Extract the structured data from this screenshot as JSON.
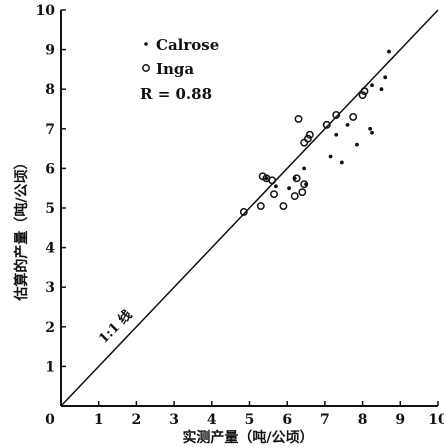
{
  "chart_data": {
    "type": "scatter",
    "title": "",
    "xlabel": "实测产量（吨/公顷）",
    "ylabel": "估算的产量（吨/公顷）",
    "xlim": [
      0,
      10
    ],
    "ylim": [
      0,
      10
    ],
    "x_ticks": [
      0,
      1,
      2,
      3,
      4,
      5,
      6,
      7,
      8,
      9,
      10
    ],
    "y_ticks": [
      0,
      1,
      2,
      3,
      4,
      5,
      6,
      7,
      8,
      9,
      10
    ],
    "grid": false,
    "legend_position": "top-left",
    "series": [
      {
        "name": "Calrose",
        "marker": "dot",
        "points": [
          [
            5.45,
            5.75
          ],
          [
            5.7,
            5.55
          ],
          [
            6.2,
            5.75
          ],
          [
            6.45,
            6.0
          ],
          [
            6.5,
            5.6
          ],
          [
            7.15,
            6.3
          ],
          [
            7.45,
            6.15
          ],
          [
            7.6,
            7.1
          ],
          [
            7.85,
            6.6
          ],
          [
            8.2,
            7.0
          ],
          [
            8.25,
            6.9
          ],
          [
            8.5,
            8.0
          ],
          [
            8.7,
            8.95
          ],
          [
            8.25,
            8.1
          ],
          [
            8.6,
            8.3
          ],
          [
            7.3,
            6.85
          ],
          [
            6.05,
            5.5
          ]
        ]
      },
      {
        "name": "Inga",
        "marker": "circle",
        "points": [
          [
            4.85,
            4.9
          ],
          [
            5.3,
            5.05
          ],
          [
            5.35,
            5.8
          ],
          [
            5.45,
            5.75
          ],
          [
            5.6,
            5.7
          ],
          [
            5.65,
            5.35
          ],
          [
            5.9,
            5.05
          ],
          [
            6.25,
            5.75
          ],
          [
            6.3,
            7.25
          ],
          [
            6.4,
            5.4
          ],
          [
            6.45,
            5.6
          ],
          [
            6.45,
            6.65
          ],
          [
            6.55,
            6.75
          ],
          [
            6.6,
            6.85
          ],
          [
            7.05,
            7.1
          ],
          [
            7.3,
            7.35
          ],
          [
            7.75,
            7.3
          ],
          [
            8.0,
            7.85
          ],
          [
            8.05,
            7.95
          ],
          [
            6.2,
            5.3
          ]
        ]
      }
    ],
    "annotations": {
      "r_value": "R = 0.88",
      "line_label": "1:1 线",
      "line": [
        [
          0,
          0
        ],
        [
          10,
          10
        ]
      ]
    }
  },
  "colors": {
    "ink": "#111111",
    "background": "#ffffff"
  }
}
